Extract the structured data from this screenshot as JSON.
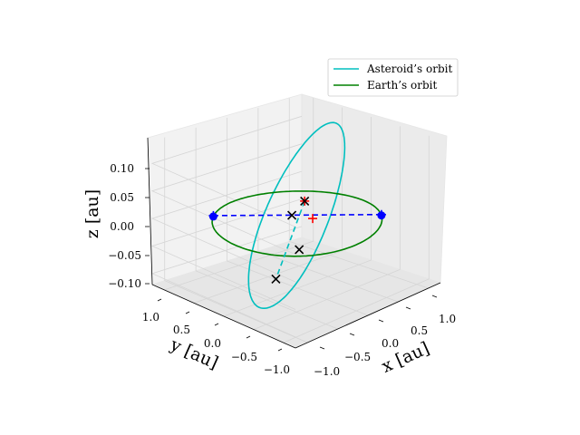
{
  "chart_data": {
    "type": "line",
    "projection": "3d",
    "axes": {
      "x": {
        "label": "x [au]",
        "ticks": [
          "−1.0",
          "−0.5",
          "0.0",
          "0.5",
          "1.0"
        ],
        "range": [
          -1.2,
          1.2
        ]
      },
      "y": {
        "label": "y [au]",
        "ticks": [
          "−1.0",
          "−0.5",
          "0.0",
          "0.5",
          "1.0"
        ],
        "range": [
          -1.2,
          1.2
        ]
      },
      "z": {
        "label": "z [au]",
        "ticks": [
          "−0.10",
          "−0.05",
          "0.00",
          "0.05",
          "0.10"
        ],
        "range": [
          -0.12,
          0.14
        ]
      }
    },
    "grid": true,
    "legend": {
      "position": "top-right",
      "entries": [
        {
          "label": "Asteroid’s orbit",
          "color": "#00bfbf"
        },
        {
          "label": "Earth’s orbit",
          "color": "#008000"
        }
      ]
    },
    "series": [
      {
        "name": "Asteroid’s orbit",
        "kind": "ellipse",
        "color": "#00bfbf",
        "center": [
          -0.3,
          -0.3,
          0.04
        ],
        "semi_axis_major": [
          0.95,
          0.95,
          0.04
        ],
        "semi_axis_minor": [
          0.4,
          -0.4,
          0.115
        ]
      },
      {
        "name": "Earth’s orbit",
        "kind": "circle",
        "color": "#008000",
        "center": [
          0,
          0,
          0
        ],
        "radius": 1.0
      }
    ],
    "lines_of_nodes": [
      {
        "color": "#0000ff",
        "style": "dashed",
        "from": [
          0.82,
          -0.58,
          0.0
        ],
        "to": [
          -0.58,
          0.82,
          0.0
        ]
      },
      {
        "color": "#00bfbf",
        "style": "dashed",
        "from": [
          -0.9,
          -1.05,
          0.125
        ],
        "to": [
          -0.16,
          0.2,
          -0.105
        ]
      }
    ],
    "markers": [
      {
        "symbol": "circle",
        "color": "#0000ff",
        "xyz": [
          -0.6,
          0.8,
          0.0
        ]
      },
      {
        "symbol": "circle",
        "color": "#0000ff",
        "xyz": [
          0.8,
          -0.6,
          0.0
        ]
      },
      {
        "symbol": "plus",
        "color": "#0000ff",
        "xyz": [
          -0.58,
          0.82,
          0.0
        ]
      },
      {
        "symbol": "plus",
        "color": "#0000ff",
        "xyz": [
          0.82,
          -0.58,
          0.0
        ]
      },
      {
        "symbol": "plus",
        "color": "#ff0000",
        "xyz": [
          -0.9,
          -1.05,
          0.125
        ]
      },
      {
        "symbol": "plus",
        "color": "#ff0000",
        "xyz": [
          0.2,
          -0.05,
          0.0
        ]
      },
      {
        "symbol": "x",
        "color": "#000000",
        "xyz": [
          -0.9,
          -1.05,
          0.125
        ]
      },
      {
        "symbol": "x",
        "color": "#000000",
        "xyz": [
          -0.55,
          -0.6,
          0.0
        ]
      },
      {
        "symbol": "x",
        "color": "#000000",
        "xyz": [
          0.1,
          0.2,
          0.0
        ]
      },
      {
        "symbol": "x",
        "color": "#000000",
        "xyz": [
          -0.16,
          0.2,
          -0.105
        ]
      }
    ]
  }
}
